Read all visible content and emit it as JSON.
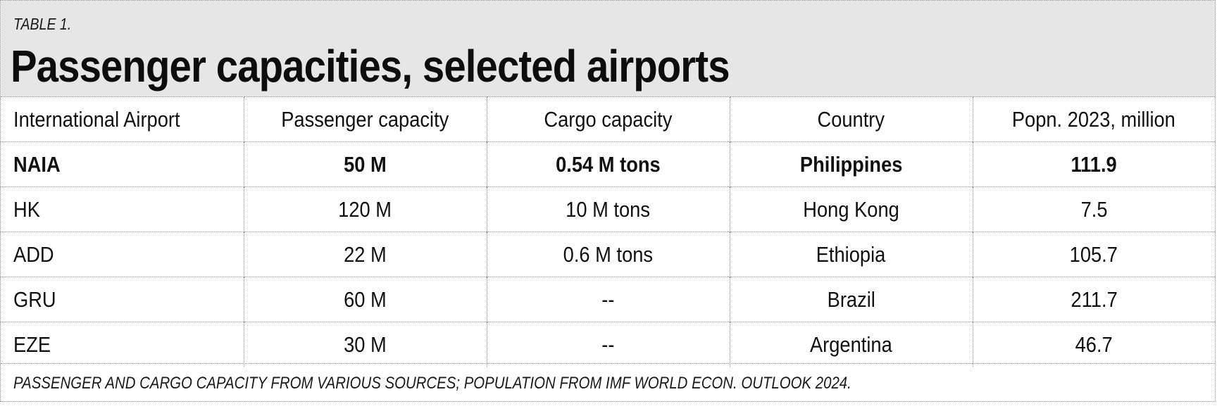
{
  "header": {
    "label": "TABLE 1.",
    "title": "Passenger capacities, selected airports"
  },
  "table": {
    "columns": [
      "International Airport",
      "Passenger capacity",
      "Cargo capacity",
      "Country",
      "Popn. 2023, million"
    ],
    "rows": [
      [
        "NAIA",
        "50 M",
        "0.54 M tons",
        "Philippines",
        "111.9"
      ],
      [
        "HK",
        "120 M",
        "10 M tons",
        "Hong Kong",
        "7.5"
      ],
      [
        "ADD",
        "22 M",
        "0.6 M tons",
        "Ethiopia",
        "105.7"
      ],
      [
        "GRU",
        "60 M",
        "--",
        "Brazil",
        "211.7"
      ],
      [
        "EZE",
        "30 M",
        "--",
        "Argentina",
        "46.7"
      ]
    ],
    "highlighted_row": "NAIA"
  },
  "footnote": "PASSENGER AND CARGO CAPACITY FROM VARIOUS SOURCES; POPULATION FROM IMF WORLD ECON. OUTLOOK 2024.",
  "colors": {
    "header_background": "#e6e6e6",
    "border": "#8c8c8c",
    "text": "#111111"
  }
}
